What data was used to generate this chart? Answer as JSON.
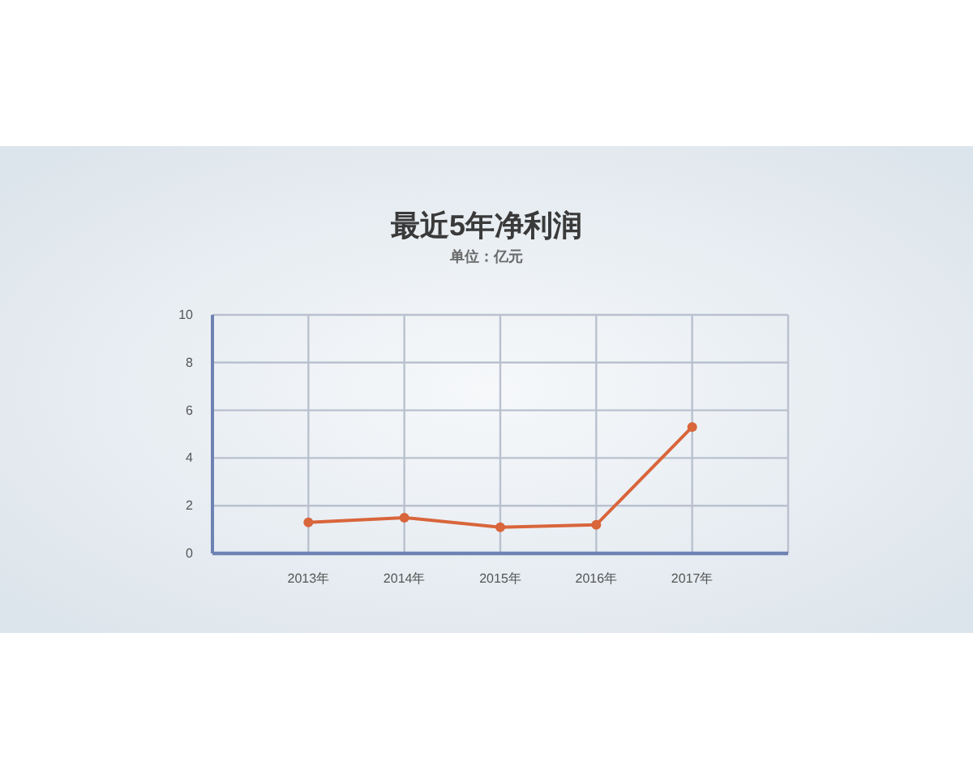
{
  "chart_data": {
    "type": "line",
    "title": "最近5年净利润",
    "subtitle": "单位：亿元",
    "categories": [
      "2013年",
      "2014年",
      "2015年",
      "2016年",
      "2017年"
    ],
    "series": [
      {
        "color": "#d9653b",
        "values": [
          1.3,
          1.5,
          1.1,
          1.2,
          5.3
        ]
      }
    ],
    "ylim": [
      0,
      10
    ],
    "yticks": [
      0,
      2,
      4,
      6,
      8,
      10
    ],
    "grid": true,
    "marker": "circle",
    "line_style": "solid"
  }
}
